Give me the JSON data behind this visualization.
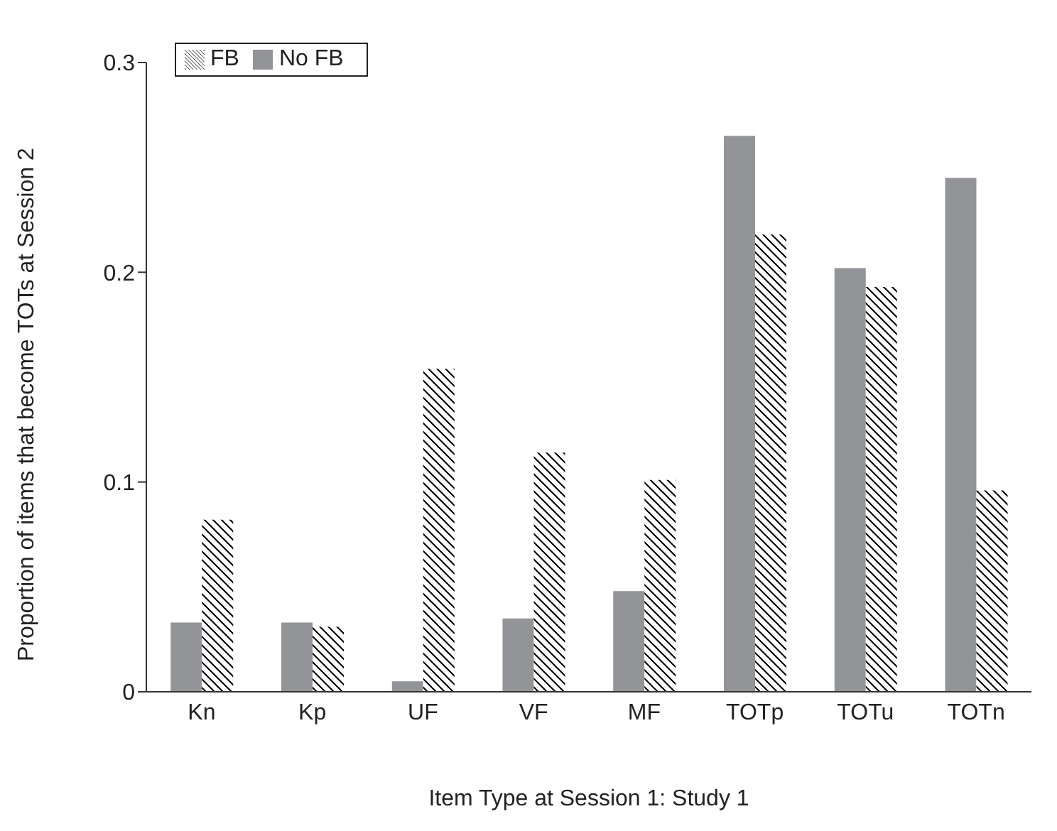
{
  "chart_data": {
    "type": "bar",
    "xlabel": "Item Type at Session 1: Study 1",
    "ylabel": "Proportion of items that become TOTs at Session 2",
    "categories": [
      "Kn",
      "Kp",
      "UF",
      "VF",
      "MF",
      "TOTp",
      "TOTu",
      "TOTn"
    ],
    "series": [
      {
        "name": "No FB",
        "color": "#939498",
        "values": [
          0.033,
          0.033,
          0.005,
          0.035,
          0.048,
          0.265,
          0.202,
          0.245
        ]
      },
      {
        "name": "FB",
        "color": "#000000",
        "values": [
          0.082,
          0.031,
          0.154,
          0.114,
          0.101,
          0.218,
          0.193,
          0.096
        ]
      }
    ],
    "ylim": [
      0,
      0.3
    ],
    "yticks": [
      0,
      0.1,
      0.2,
      0.3
    ],
    "grid": false,
    "legend": "top left"
  }
}
